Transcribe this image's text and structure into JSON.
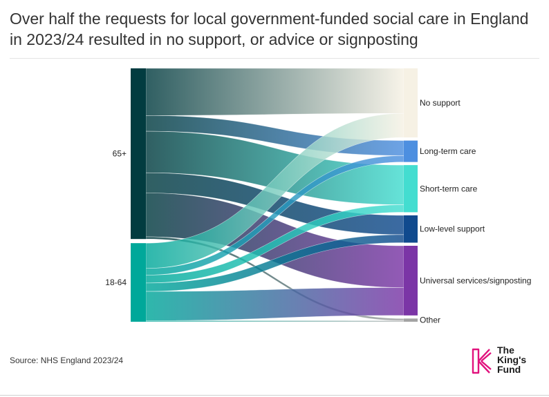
{
  "title": "Over half the requests for local government-funded social care in England in 2023/24 resulted in no support, or advice or signposting",
  "source": "Source: NHS England 2023/24",
  "logo": {
    "line1": "The",
    "line2": "King's",
    "line3": "Fund"
  },
  "colors": {
    "age_65": "#023c40",
    "age_18_64": "#00a89a",
    "no_support": "#f6f1e4",
    "long_term": "#4d8fe0",
    "short_term": "#43ddd0",
    "low_level": "#104a8e",
    "universal": "#7b35a6",
    "other": "#a3a3a3",
    "logo": "#e1127d"
  },
  "chart_data": {
    "type": "sankey",
    "title": "Over half the requests for local government-funded social care in England in 2023/24 resulted in no support, or advice or signposting",
    "sources": [
      {
        "id": "s65",
        "label": "65+"
      },
      {
        "id": "s1864",
        "label": "18-64"
      }
    ],
    "targets": [
      {
        "id": "no_support",
        "label": "No support"
      },
      {
        "id": "long_term",
        "label": "Long-term care"
      },
      {
        "id": "short_term",
        "label": "Short-term care"
      },
      {
        "id": "low_level",
        "label": "Low-level support"
      },
      {
        "id": "universal",
        "label": "Universal services/signposting"
      },
      {
        "id": "other",
        "label": "Other"
      }
    ],
    "flows": [
      {
        "source": "s65",
        "target": "no_support",
        "value": 420
      },
      {
        "source": "s65",
        "target": "long_term",
        "value": 140
      },
      {
        "source": "s65",
        "target": "short_term",
        "value": 370
      },
      {
        "source": "s65",
        "target": "low_level",
        "value": 180
      },
      {
        "source": "s65",
        "target": "universal",
        "value": 390
      },
      {
        "source": "s65",
        "target": "other",
        "value": 20
      },
      {
        "source": "s1864",
        "target": "no_support",
        "value": 225
      },
      {
        "source": "s1864",
        "target": "long_term",
        "value": 60
      },
      {
        "source": "s1864",
        "target": "short_term",
        "value": 70
      },
      {
        "source": "s1864",
        "target": "low_level",
        "value": 75
      },
      {
        "source": "s1864",
        "target": "universal",
        "value": 260
      },
      {
        "source": "s1864",
        "target": "other",
        "value": 10
      }
    ]
  }
}
